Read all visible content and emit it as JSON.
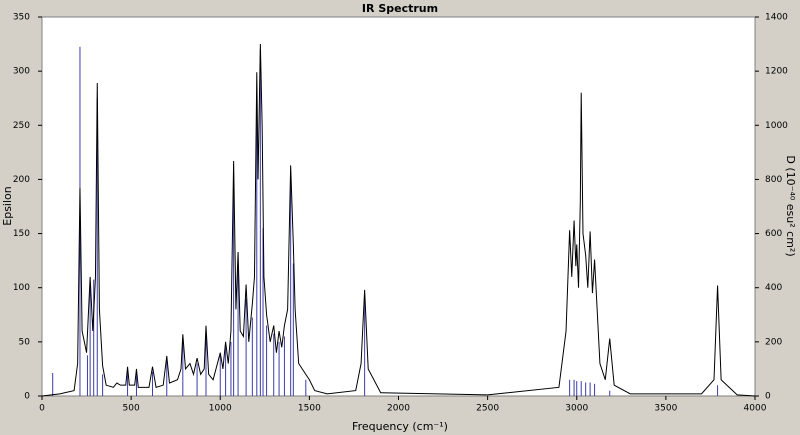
{
  "chart_data": {
    "type": "spectrum",
    "title": "IR Spectrum",
    "x_label": "Frequency (cm⁻¹)",
    "y_label": "Epsilon",
    "y2_label": "D (10⁻⁴⁰ esu² cm²)",
    "xlim": [
      0,
      4000
    ],
    "xticks": [
      0,
      500,
      1000,
      1500,
      2000,
      2500,
      3000,
      3500,
      4000
    ],
    "ylim": [
      0,
      350
    ],
    "yticks": [
      0,
      50,
      100,
      150,
      200,
      250,
      300,
      350
    ],
    "y2lim": [
      0,
      1400
    ],
    "y2ticks": [
      0,
      200,
      400,
      600,
      800,
      1000,
      1200,
      1400
    ],
    "series": [
      {
        "type": "line",
        "color": "#000000",
        "x": [
          0,
          100,
          180,
          200,
          213,
          225,
          250,
          270,
          285,
          300,
          310,
          322,
          340,
          360,
          400,
          420,
          440,
          470,
          480,
          490,
          520,
          530,
          540,
          600,
          620,
          640,
          680,
          700,
          715,
          760,
          780,
          790,
          805,
          830,
          850,
          870,
          890,
          910,
          920,
          935,
          960,
          1000,
          1015,
          1030,
          1045,
          1060,
          1075,
          1088,
          1100,
          1112,
          1130,
          1145,
          1160,
          1180,
          1192,
          1205,
          1212,
          1225,
          1235,
          1245,
          1260,
          1280,
          1300,
          1315,
          1330,
          1345,
          1360,
          1378,
          1395,
          1410,
          1420,
          1440,
          1480,
          1500,
          1530,
          1600,
          1760,
          1790,
          1810,
          1830,
          1900,
          2500,
          2900,
          2940,
          2960,
          2972,
          2985,
          2995,
          3000,
          3010,
          3020,
          3025,
          3035,
          3050,
          3062,
          3075,
          3088,
          3100,
          3130,
          3160,
          3185,
          3210,
          3300,
          3700,
          3770,
          3790,
          3810,
          3900,
          4000
        ],
        "values": [
          0,
          2,
          5,
          30,
          192,
          60,
          40,
          110,
          60,
          110,
          289,
          80,
          28,
          10,
          8,
          12,
          10,
          10,
          27,
          10,
          10,
          25,
          8,
          8,
          27,
          8,
          10,
          37,
          12,
          15,
          25,
          57,
          25,
          30,
          20,
          35,
          20,
          25,
          65,
          20,
          15,
          40,
          25,
          50,
          30,
          60,
          217,
          80,
          133,
          60,
          55,
          103,
          50,
          85,
          110,
          299,
          200,
          325,
          250,
          110,
          75,
          50,
          65,
          40,
          60,
          45,
          65,
          80,
          213,
          140,
          80,
          30,
          20,
          15,
          5,
          2,
          5,
          30,
          98,
          25,
          3,
          1,
          8,
          60,
          153,
          110,
          162,
          120,
          140,
          100,
          180,
          280,
          150,
          130,
          100,
          152,
          95,
          126,
          30,
          15,
          53,
          10,
          2,
          2,
          15,
          102,
          15,
          1,
          0
        ]
      },
      {
        "type": "stick",
        "color": "#3c3caa",
        "axis": "y2",
        "x": [
          60,
          213,
          255,
          270,
          290,
          310,
          340,
          480,
          530,
          620,
          700,
          790,
          870,
          920,
          1000,
          1030,
          1060,
          1075,
          1100,
          1145,
          1180,
          1205,
          1225,
          1240,
          1260,
          1300,
          1330,
          1360,
          1395,
          1410,
          1480,
          1810,
          2960,
          2985,
          3000,
          3025,
          3050,
          3075,
          3100,
          3185,
          3790
        ],
        "values": [
          85,
          1290,
          150,
          420,
          430,
          1100,
          80,
          90,
          90,
          90,
          130,
          210,
          120,
          230,
          150,
          180,
          200,
          800,
          470,
          360,
          290,
          1070,
          1280,
          620,
          260,
          230,
          200,
          220,
          780,
          490,
          60,
          350,
          60,
          60,
          55,
          55,
          50,
          50,
          45,
          20,
          40
        ]
      }
    ]
  }
}
